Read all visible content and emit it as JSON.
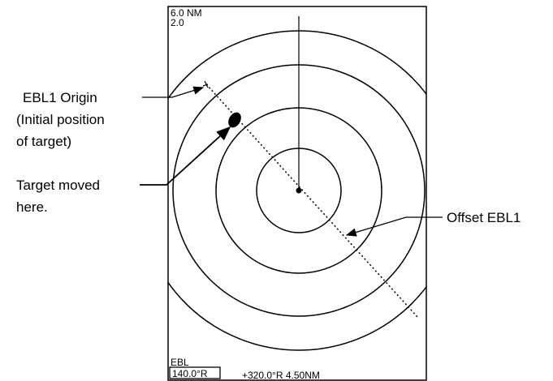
{
  "screen": {
    "range": "6.0 NM",
    "ring_interval": "2.0",
    "ebl_label": "EBL",
    "ebl_bearing": "140.0°R",
    "cursor_readout": "+320.0°R 4.50NM"
  },
  "callouts": {
    "origin": [
      "EBL1 Origin",
      "(Initial position",
      "of target)"
    ],
    "target": [
      "Target moved",
      "here."
    ],
    "offset": "Offset EBL1"
  }
}
